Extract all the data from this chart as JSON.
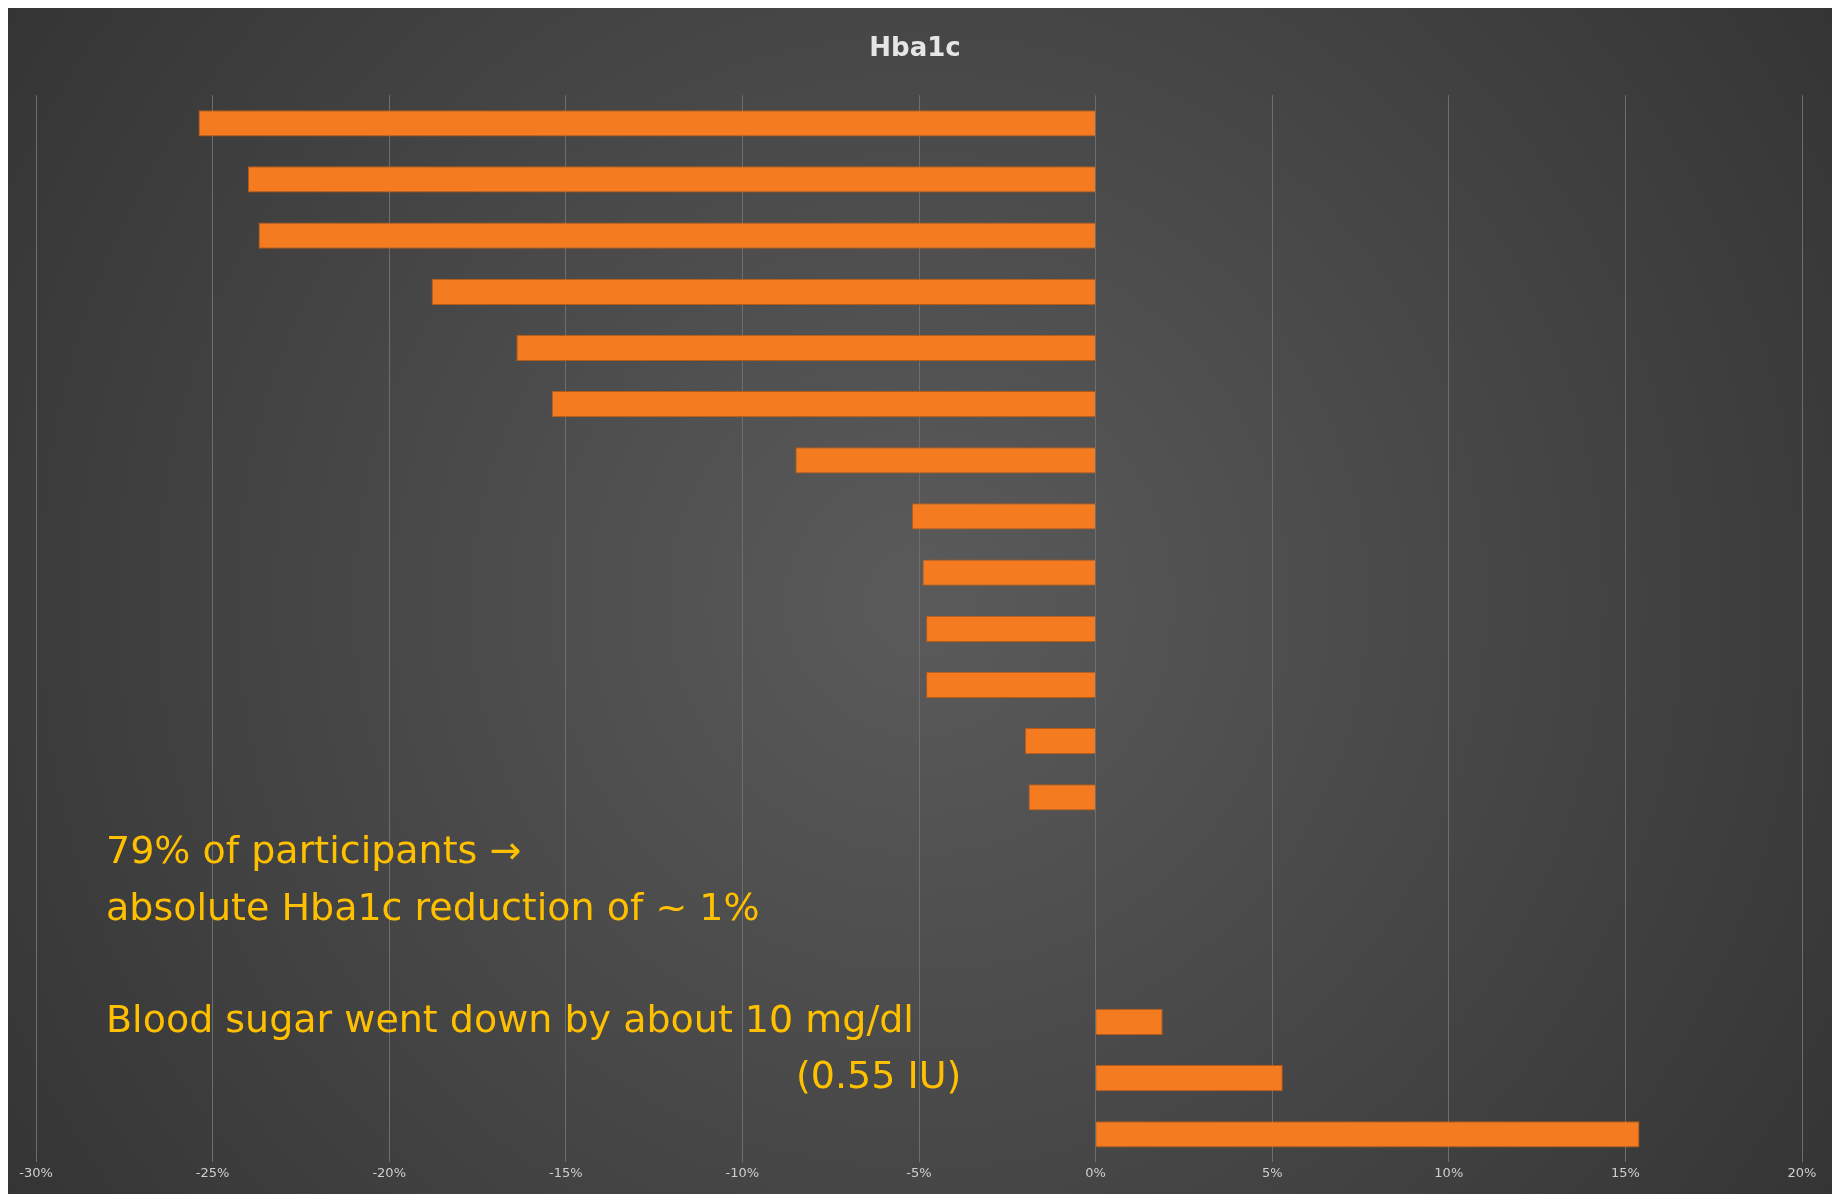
{
  "chart_data": {
    "type": "bar",
    "title": "Hba1c",
    "orientation": "horizontal",
    "categories": [
      null,
      null,
      null,
      null,
      null,
      null,
      null,
      null,
      null,
      null,
      null,
      null,
      null,
      null,
      null,
      null,
      null,
      null,
      null
    ],
    "values": [
      -25.4,
      -24.0,
      -23.7,
      -18.8,
      -16.4,
      -15.4,
      -8.5,
      -5.2,
      -4.9,
      -4.8,
      -4.8,
      -2.0,
      -1.9,
      0,
      0,
      0,
      1.9,
      5.3,
      15.4
    ],
    "color": "#f47b20",
    "xlim": [
      -30,
      20
    ],
    "xticks": [
      {
        "value": -30,
        "label": "-30%"
      },
      {
        "value": -25,
        "label": "-25%"
      },
      {
        "value": -20,
        "label": "-20%"
      },
      {
        "value": -15,
        "label": "-15%"
      },
      {
        "value": -10,
        "label": "-10%"
      },
      {
        "value": -5,
        "label": "-5%"
      },
      {
        "value": 0,
        "label": "0%"
      },
      {
        "value": 5,
        "label": "5%"
      },
      {
        "value": 10,
        "label": "10%"
      },
      {
        "value": 15,
        "label": "15%"
      },
      {
        "value": 20,
        "label": "20%"
      }
    ],
    "grid": "x",
    "annotations": [
      "79% of participants →",
      "absolute Hba1c reduction of ~ 1%",
      "Blood sugar went down by about 10 mg/dl",
      "(0.55 IU)"
    ]
  }
}
